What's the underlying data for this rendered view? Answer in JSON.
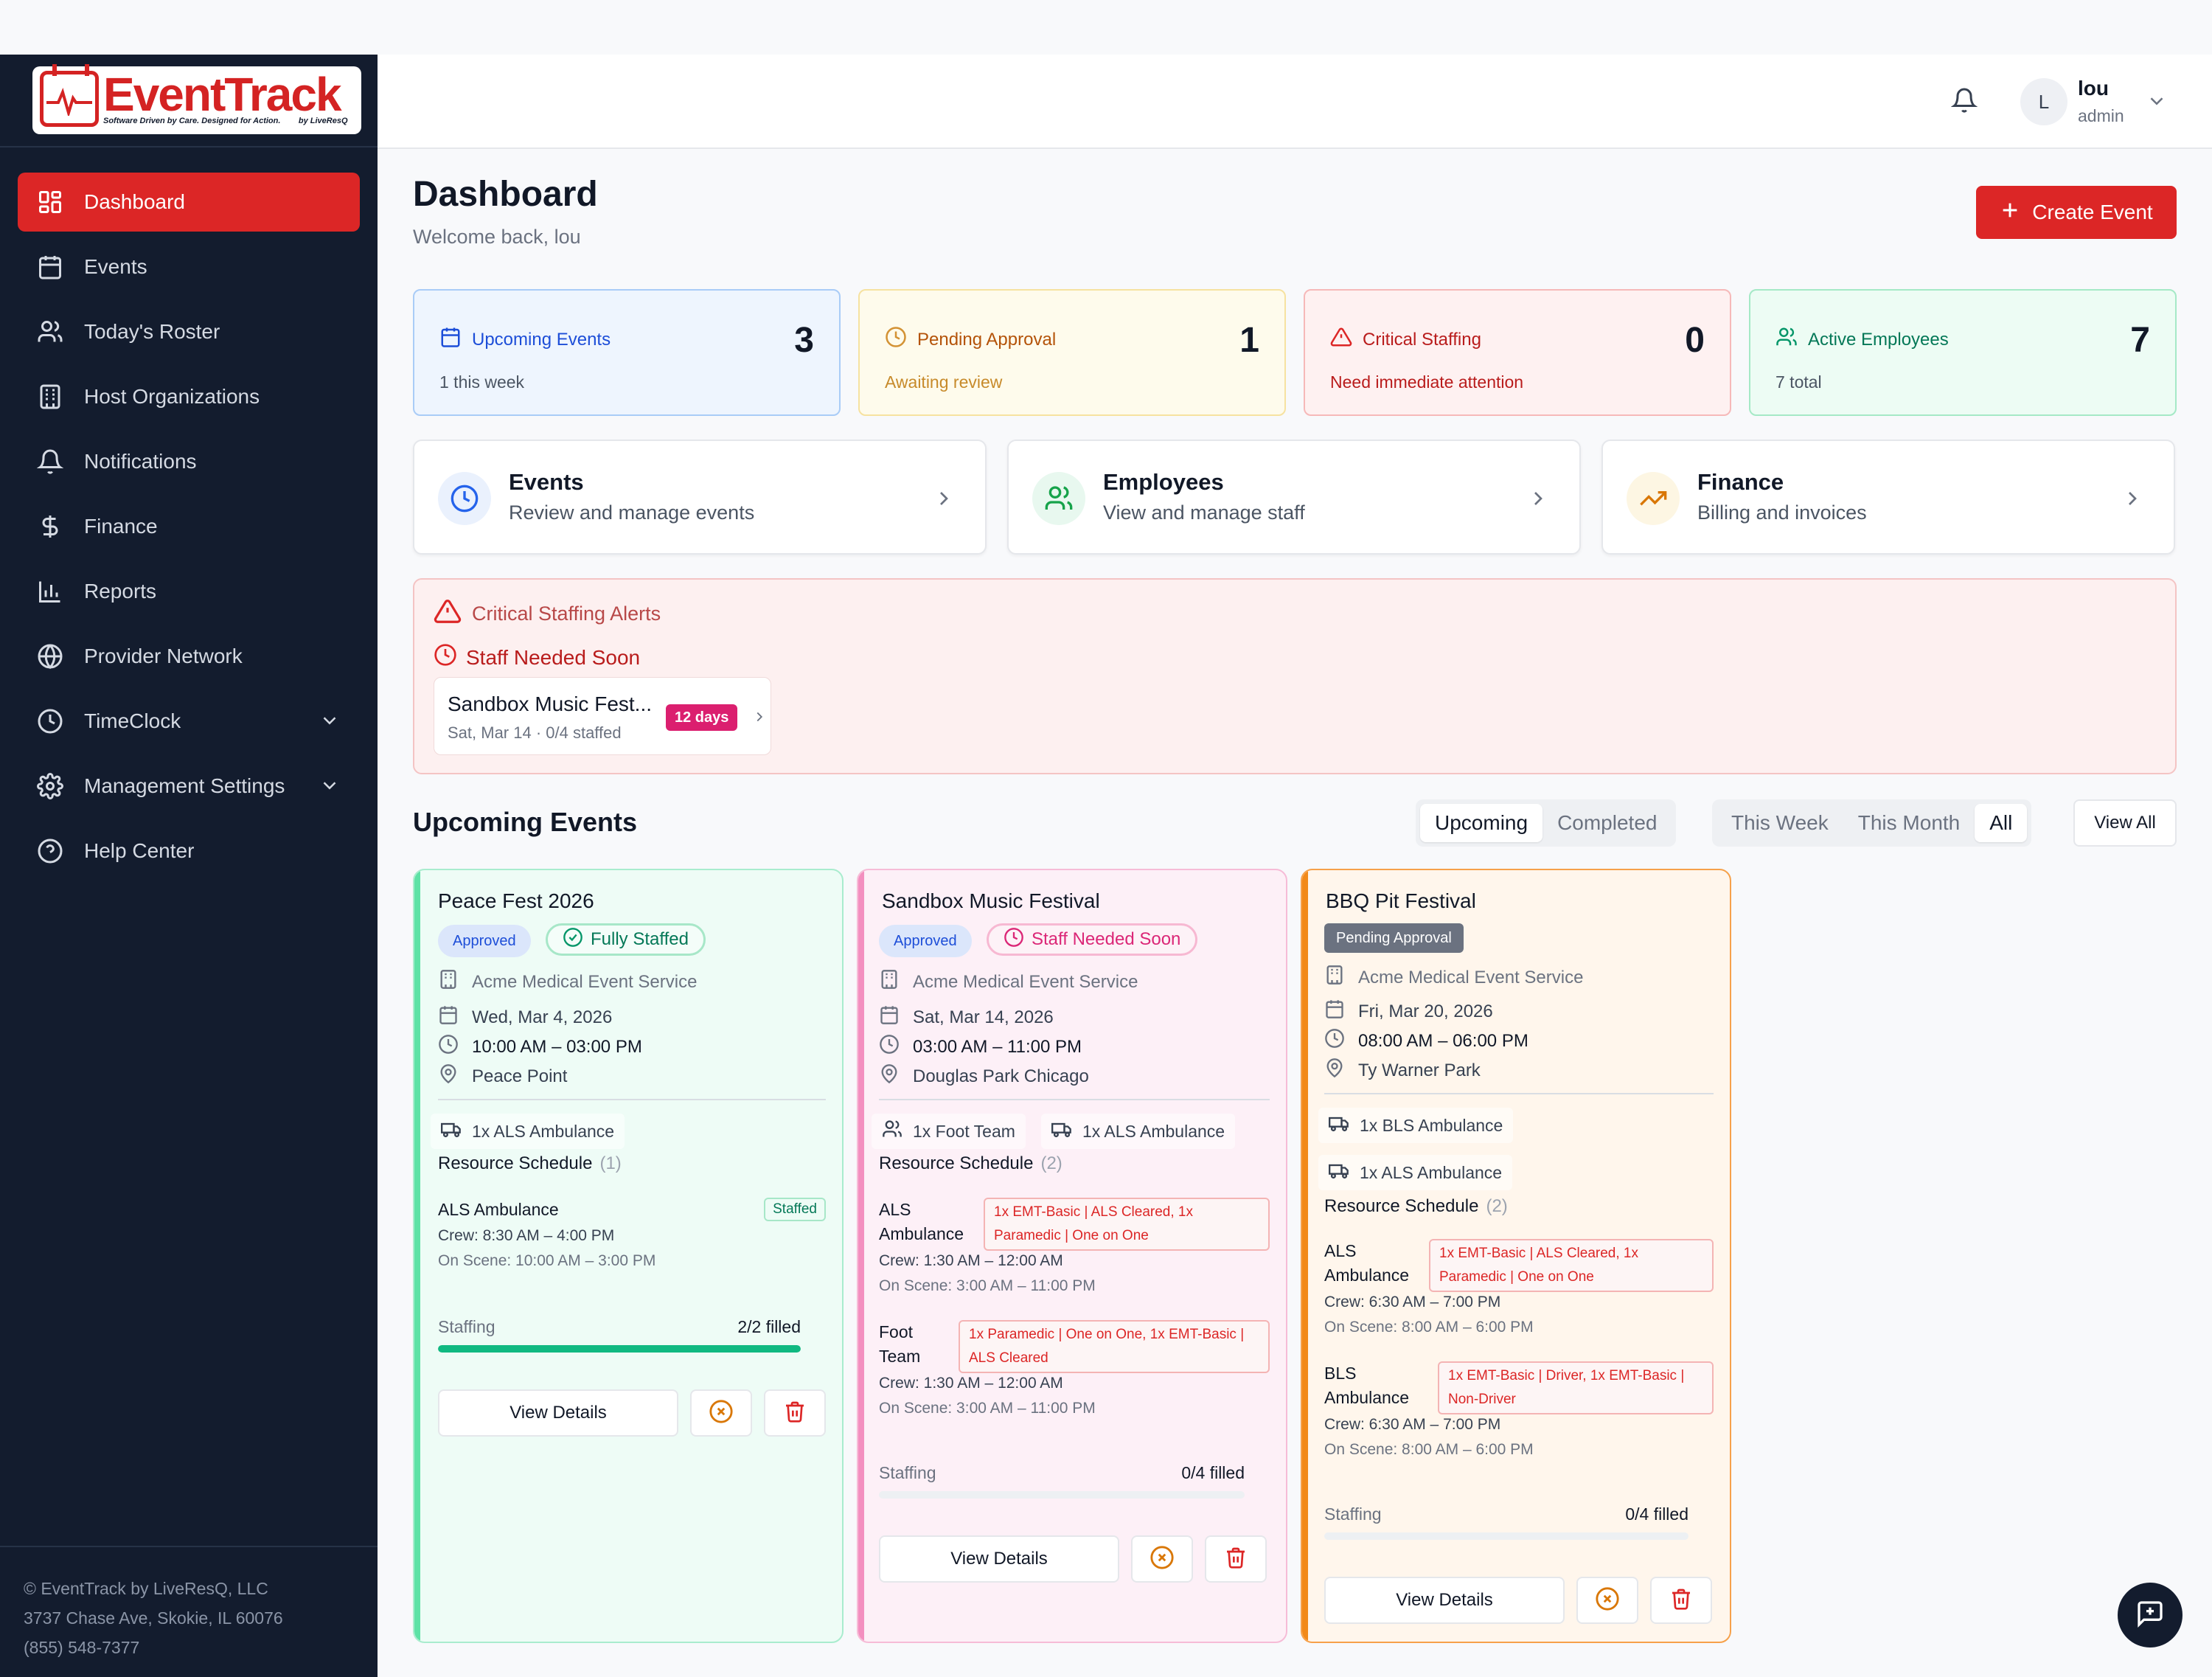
{
  "app": {
    "brand_name": "EventTrack",
    "brand_tagline": "Software Driven by Care. Designed for Action.",
    "brand_byline": "by LiveResQ",
    "accent_color": "#dc2626"
  },
  "sidebar": {
    "items": [
      {
        "label": "Dashboard",
        "icon": "dashboard-icon",
        "active": true
      },
      {
        "label": "Events",
        "icon": "calendar-icon"
      },
      {
        "label": "Today's Roster",
        "icon": "users-icon"
      },
      {
        "label": "Host Organizations",
        "icon": "building-icon"
      },
      {
        "label": "Notifications",
        "icon": "bell-icon"
      },
      {
        "label": "Finance",
        "icon": "dollar-icon"
      },
      {
        "label": "Reports",
        "icon": "bar-chart-icon"
      },
      {
        "label": "Provider Network",
        "icon": "globe-icon"
      },
      {
        "label": "TimeClock",
        "icon": "clock-icon",
        "expandable": true
      },
      {
        "label": "Management Settings",
        "icon": "gear-icon",
        "expandable": true
      },
      {
        "label": "Help Center",
        "icon": "help-circle-icon"
      }
    ],
    "footer": {
      "copyright": "© EventTrack by LiveResQ, LLC",
      "address": "3737 Chase Ave, Skokie, IL 60076",
      "phone": "(855) 548-7377"
    }
  },
  "header": {
    "avatar_initial": "L",
    "user_name": "lou",
    "user_role": "admin"
  },
  "page": {
    "title": "Dashboard",
    "welcome": "Welcome back, lou",
    "create_button": "Create Event"
  },
  "stats": [
    {
      "label": "Upcoming Events",
      "value": "3",
      "sub": "1 this week",
      "color": "#1d4ed8",
      "icon": "calendar-icon"
    },
    {
      "label": "Pending Approval",
      "value": "1",
      "sub": "Awaiting review",
      "color": "#b45309",
      "icon": "clock-icon"
    },
    {
      "label": "Critical Staffing",
      "value": "0",
      "sub": "Need immediate attention",
      "color": "#b91c1c",
      "icon": "alert-triangle-icon"
    },
    {
      "label": "Active Employees",
      "value": "7",
      "sub": "7 total",
      "color": "#047857",
      "icon": "users-icon"
    }
  ],
  "quick_links": [
    {
      "title": "Events",
      "sub": "Review and manage events",
      "icon": "clock-icon"
    },
    {
      "title": "Employees",
      "sub": "View and manage staff",
      "icon": "users-icon"
    },
    {
      "title": "Finance",
      "sub": "Billing and invoices",
      "icon": "trending-up-icon"
    }
  ],
  "alerts": {
    "title": "Critical Staffing Alerts",
    "subtitle": "Staff Needed Soon",
    "items": [
      {
        "name": "Sandbox Music Fest...",
        "sub": "Sat, Mar 14 · 0/4 staffed",
        "badge": "12 days"
      }
    ]
  },
  "upcoming": {
    "title": "Upcoming Events",
    "status_tabs": [
      {
        "label": "Upcoming",
        "active": true
      },
      {
        "label": "Completed"
      }
    ],
    "range_tabs": [
      {
        "label": "This Week"
      },
      {
        "label": "This Month"
      },
      {
        "label": "All",
        "active": true
      }
    ],
    "view_all": "View All",
    "resource_schedule_label": "Resource Schedule",
    "staffing_label": "Staffing",
    "view_details_label": "View Details"
  },
  "events": [
    {
      "title": "Peace Fest 2026",
      "status": "Approved",
      "staff_status": "Fully Staffed",
      "provider": "Acme Medical Event Service",
      "date": "Wed, Mar 4, 2026",
      "time": "10:00 AM – 03:00 PM",
      "location": "Peace Point",
      "resources": [
        "1x ALS Ambulance"
      ],
      "schedule_count": "(1)",
      "schedule": [
        {
          "name": "ALS Ambulance",
          "tag": "Staffed",
          "crew": "Crew: 8:30 AM – 4:00 PM",
          "on_scene": "On Scene: 10:00 AM – 3:00 PM"
        }
      ],
      "staffing": "2/2 filled",
      "staffing_fraction": 1.0
    },
    {
      "title": "Sandbox Music Festival",
      "status": "Approved",
      "staff_status": "Staff Needed Soon",
      "provider": "Acme Medical Event Service",
      "date": "Sat, Mar 14, 2026",
      "time": "03:00 AM – 11:00 PM",
      "location": "Douglas Park Chicago",
      "resources": [
        "1x Foot Team",
        "1x ALS Ambulance"
      ],
      "schedule_count": "(2)",
      "schedule": [
        {
          "name_line1": "ALS",
          "name_line2": "Ambulance",
          "req_line1": "1x EMT-Basic | ALS Cleared, 1x",
          "req_line2": "Paramedic | One on One",
          "crew": "Crew: 1:30 AM – 12:00 AM",
          "on_scene": "On Scene: 3:00 AM – 11:00 PM"
        },
        {
          "name_line1": "Foot",
          "name_line2": "Team",
          "req_line1": "1x Paramedic | One on One, 1x EMT-Basic |",
          "req_line2": "ALS Cleared",
          "crew": "Crew: 1:30 AM – 12:00 AM",
          "on_scene": "On Scene: 3:00 AM – 11:00 PM"
        }
      ],
      "staffing": "0/4 filled",
      "staffing_fraction": 0
    },
    {
      "title": "BBQ Pit Festival",
      "status": "Pending Approval",
      "provider": "Acme Medical Event Service",
      "date": "Fri, Mar 20, 2026",
      "time": "08:00 AM – 06:00 PM",
      "location": "Ty Warner Park",
      "resources": [
        "1x BLS Ambulance",
        "1x ALS Ambulance"
      ],
      "schedule_count": "(2)",
      "schedule": [
        {
          "name_line1": "ALS",
          "name_line2": "Ambulance",
          "req_line1": "1x EMT-Basic | ALS Cleared, 1x",
          "req_line2": "Paramedic | One on One",
          "crew": "Crew: 6:30 AM – 7:00 PM",
          "on_scene": "On Scene: 8:00 AM – 6:00 PM"
        },
        {
          "name_line1": "BLS",
          "name_line2": "Ambulance",
          "req_line1": "1x EMT-Basic | Driver, 1x EMT-Basic |",
          "req_line2": "Non-Driver",
          "crew": "Crew: 6:30 AM – 7:00 PM",
          "on_scene": "On Scene: 8:00 AM – 6:00 PM"
        }
      ],
      "staffing": "0/4 filled",
      "staffing_fraction": 0
    }
  ]
}
